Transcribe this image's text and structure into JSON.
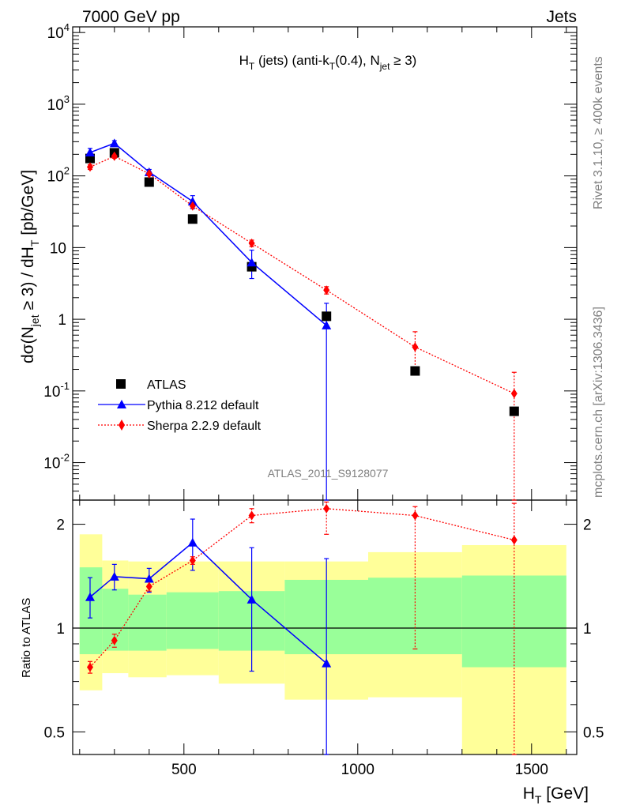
{
  "header": {
    "left": "7000 GeV pp",
    "right": "Jets"
  },
  "side_text": {
    "top": "Rivet 3.1.10, ≥ 400k events",
    "bottom": "mcplots.cern.ch [arXiv:1306.3436]"
  },
  "chart_data": {
    "type": "line",
    "title": "H_T (jets) (anti-k_T(0.4), N_jet ≥ 3)",
    "watermark": "ATLAS_2011_S9128077",
    "xlabel": "H_T [GeV]",
    "ylabel": "dσ(N_jet ≥ 3) / dH_T [pb/GeV]",
    "ratio_ylabel": "Ratio to ATLAS",
    "xlim": [
      180,
      1630
    ],
    "ylim": [
      0.003,
      12000
    ],
    "yscale": "log",
    "ratio_ylim": [
      0.43,
      2.35
    ],
    "ratio_yscale": "log",
    "x_ticks": [
      "500",
      "1000",
      "1500"
    ],
    "y_ticks": [
      "10^-2",
      "10^-1",
      "1",
      "10",
      "10^2",
      "10^3",
      "10^4"
    ],
    "ratio_ticks": [
      "0.5",
      "1",
      "2"
    ],
    "legend_position": "bottom-left",
    "bins": [
      {
        "lo": 200,
        "hi": 265
      },
      {
        "lo": 265,
        "hi": 340
      },
      {
        "lo": 340,
        "hi": 450
      },
      {
        "lo": 450,
        "hi": 600
      },
      {
        "lo": 600,
        "hi": 790
      },
      {
        "lo": 790,
        "hi": 1030
      },
      {
        "lo": 1030,
        "hi": 1300
      },
      {
        "lo": 1300,
        "hi": 1600
      }
    ],
    "series": [
      {
        "name": "ATLAS",
        "color": "#000000",
        "marker": "square",
        "x": [
          230,
          300,
          400,
          525,
          695,
          910,
          1165,
          1450
        ],
        "y": [
          175,
          210,
          82,
          25,
          5.4,
          1.1,
          0.19,
          0.052
        ]
      },
      {
        "name": "Pythia 8.212 default",
        "color": "#0000ff",
        "marker": "triangle",
        "x": [
          230,
          300,
          400,
          525,
          695,
          910
        ],
        "y": [
          212,
          285,
          113,
          44,
          6.2,
          0.82
        ],
        "y_err_up": [
          30,
          25,
          10,
          9,
          3,
          0.85
        ],
        "y_err_down": [
          30,
          25,
          10,
          9,
          2.5,
          0.82
        ]
      },
      {
        "name": "Sherpa 2.2.9 default",
        "color": "#ff0000",
        "marker": "diamond",
        "x": [
          230,
          300,
          400,
          525,
          695,
          910,
          1165,
          1450
        ],
        "y": [
          133,
          188,
          107,
          38,
          11.5,
          2.55,
          0.41,
          0.092
        ],
        "y_err_up": [
          10,
          12,
          6,
          3,
          1.2,
          0.3,
          0.26,
          0.09
        ],
        "y_err_down": [
          10,
          12,
          6,
          3,
          1.2,
          0.3,
          0.22,
          0.09
        ]
      }
    ],
    "ratio": {
      "band_inner": [
        [
          0.84,
          1.5
        ],
        [
          0.86,
          1.3
        ],
        [
          0.86,
          1.25
        ],
        [
          0.87,
          1.27
        ],
        [
          0.86,
          1.28
        ],
        [
          0.84,
          1.38
        ],
        [
          0.84,
          1.4
        ],
        [
          0.77,
          1.42
        ]
      ],
      "band_outer": [
        [
          0.66,
          1.87
        ],
        [
          0.74,
          1.57
        ],
        [
          0.72,
          1.56
        ],
        [
          0.73,
          1.56
        ],
        [
          0.69,
          1.56
        ],
        [
          0.62,
          1.56
        ],
        [
          0.63,
          1.66
        ],
        [
          0.42,
          1.74
        ]
      ],
      "pythia": {
        "y": [
          1.23,
          1.41,
          1.39,
          1.77,
          1.21,
          0.79
        ],
        "y_err_up": [
          0.17,
          0.12,
          0.1,
          0.3,
          0.5,
          0.8
        ],
        "y_err_down": [
          0.16,
          0.12,
          0.12,
          0.3,
          0.46,
          0.79
        ]
      },
      "sherpa": {
        "y": [
          0.77,
          0.92,
          1.32,
          1.57,
          2.12,
          2.22,
          2.12,
          1.8
        ],
        "y_err_up": [
          0.03,
          0.04,
          0.04,
          0.04,
          0.1,
          0.1,
          0.13,
          0.5
        ],
        "y_err_down": [
          0.03,
          0.04,
          0.04,
          0.04,
          0.1,
          0.35,
          1.25,
          1.4
        ]
      }
    }
  }
}
